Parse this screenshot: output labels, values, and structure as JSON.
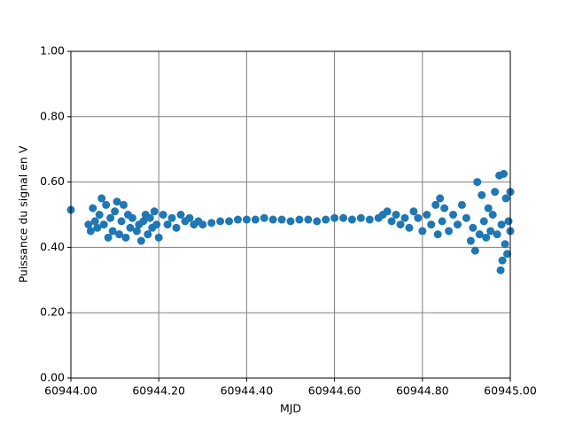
{
  "chart_data": {
    "type": "scatter",
    "xlabel": "MJD",
    "ylabel": "Puissance du signal en V",
    "color": "#1f77b4",
    "grid": true,
    "xlim": [
      60944.0,
      60945.0
    ],
    "xticks": [
      {
        "value": 60944.0,
        "label": "60944.00"
      },
      {
        "value": 60944.2,
        "label": "60944.20"
      },
      {
        "value": 60944.4,
        "label": "60944.40"
      },
      {
        "value": 60944.6,
        "label": "60944.60"
      },
      {
        "value": 60944.8,
        "label": "60944.80"
      },
      {
        "value": 60945.0,
        "label": "60945.00"
      }
    ],
    "ylim": [
      0,
      1
    ],
    "yticks": [
      {
        "value": 0,
        "label": "0.00"
      },
      {
        "value": 0.2,
        "label": "0.20"
      },
      {
        "value": 0.4,
        "label": "0.40"
      },
      {
        "value": 0.6,
        "label": "0.60"
      },
      {
        "value": 0.8,
        "label": "0.80"
      },
      {
        "value": 1,
        "label": "1.00"
      }
    ],
    "x": [
      60944.0,
      60944.04,
      60944.045,
      60944.05,
      60944.055,
      60944.06,
      60944.065,
      60944.07,
      60944.075,
      60944.08,
      60944.085,
      60944.09,
      60944.095,
      60944.1,
      60944.105,
      60944.11,
      60944.115,
      60944.12,
      60944.125,
      60944.13,
      60944.135,
      60944.14,
      60944.15,
      60944.155,
      60944.16,
      60944.165,
      60944.17,
      60944.175,
      60944.18,
      60944.185,
      60944.19,
      60944.195,
      60944.2,
      60944.21,
      60944.22,
      60944.23,
      60944.24,
      60944.25,
      60944.26,
      60944.27,
      60944.28,
      60944.29,
      60944.3,
      60944.32,
      60944.34,
      60944.36,
      60944.38,
      60944.4,
      60944.42,
      60944.44,
      60944.46,
      60944.48,
      60944.5,
      60944.52,
      60944.54,
      60944.56,
      60944.58,
      60944.6,
      60944.62,
      60944.64,
      60944.66,
      60944.68,
      60944.7,
      60944.71,
      60944.72,
      60944.73,
      60944.74,
      60944.75,
      60944.76,
      60944.77,
      60944.78,
      60944.79,
      60944.8,
      60944.81,
      60944.82,
      60944.83,
      60944.835,
      60944.84,
      60944.845,
      60944.85,
      60944.86,
      60944.87,
      60944.88,
      60944.89,
      60944.9,
      60944.91,
      60944.915,
      60944.92,
      60944.925,
      60944.93,
      60944.935,
      60944.94,
      60944.945,
      60944.95,
      60944.955,
      60944.96,
      60944.965,
      60944.97,
      60944.975,
      60944.978,
      60944.98,
      60944.982,
      60944.985,
      60944.988,
      60944.99,
      60944.993,
      60944.996,
      60945.0,
      60945.0
    ],
    "y": [
      0.515,
      0.47,
      0.45,
      0.52,
      0.48,
      0.46,
      0.5,
      0.55,
      0.47,
      0.53,
      0.43,
      0.49,
      0.45,
      0.51,
      0.54,
      0.44,
      0.48,
      0.53,
      0.43,
      0.5,
      0.46,
      0.49,
      0.45,
      0.47,
      0.42,
      0.48,
      0.5,
      0.44,
      0.49,
      0.46,
      0.51,
      0.47,
      0.43,
      0.5,
      0.47,
      0.49,
      0.46,
      0.5,
      0.48,
      0.49,
      0.47,
      0.48,
      0.47,
      0.475,
      0.48,
      0.48,
      0.485,
      0.485,
      0.485,
      0.49,
      0.485,
      0.485,
      0.48,
      0.485,
      0.485,
      0.48,
      0.485,
      0.49,
      0.49,
      0.485,
      0.49,
      0.485,
      0.49,
      0.5,
      0.51,
      0.48,
      0.5,
      0.47,
      0.49,
      0.46,
      0.51,
      0.49,
      0.45,
      0.5,
      0.47,
      0.53,
      0.44,
      0.55,
      0.48,
      0.52,
      0.45,
      0.5,
      0.47,
      0.53,
      0.49,
      0.42,
      0.46,
      0.39,
      0.6,
      0.44,
      0.56,
      0.48,
      0.43,
      0.52,
      0.45,
      0.5,
      0.57,
      0.44,
      0.62,
      0.33,
      0.47,
      0.36,
      0.625,
      0.41,
      0.55,
      0.38,
      0.48,
      0.57,
      0.45
    ]
  }
}
